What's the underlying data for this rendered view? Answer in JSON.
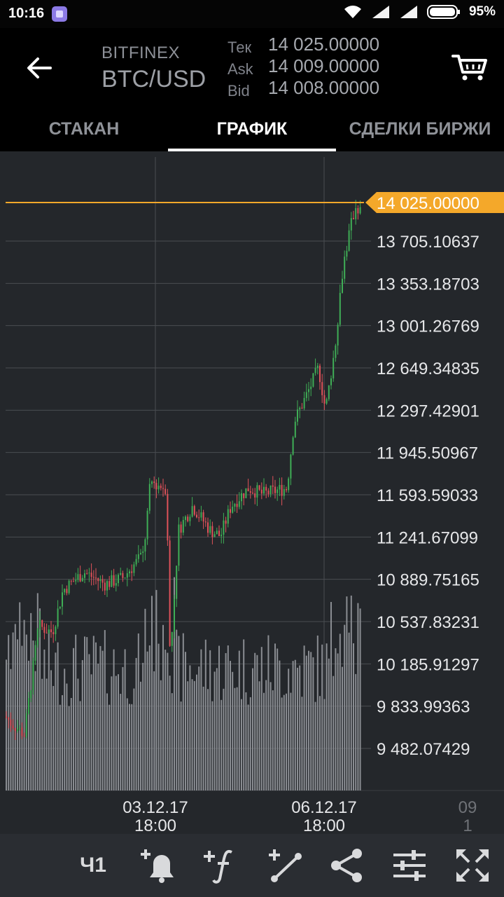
{
  "status_bar": {
    "time": "10:16",
    "battery": "95%"
  },
  "header": {
    "exchange": "BITFINEX",
    "pair": "BTC/USD",
    "quotes": [
      {
        "label": "Тек",
        "value": "14 025.00000"
      },
      {
        "label": "Ask",
        "value": "14 009.00000"
      },
      {
        "label": "Bid",
        "value": "14 008.00000"
      }
    ]
  },
  "tabs": [
    {
      "label": "СТАКАН",
      "active": false
    },
    {
      "label": "ГРАФИК",
      "active": true
    },
    {
      "label": "СДЕЛКИ БИРЖИ",
      "active": false
    }
  ],
  "chart": {
    "current_price_label": "14 025.00000",
    "current_price": 14025.0,
    "price_levels": [
      13705.10637,
      13353.18703,
      13001.26769,
      12649.34835,
      12297.42901,
      11945.50967,
      11593.59033,
      11241.67099,
      10889.75165,
      10537.83231,
      10185.91297,
      9833.99363,
      9482.07429
    ],
    "price_labels": [
      "13 705.10637",
      "13 353.18703",
      "13 001.26769",
      "12 649.34835",
      "12 297.42901",
      "11 945.50967",
      "11 593.59033",
      "11 241.67099",
      "10 889.75165",
      "10 537.83231",
      "10 185.91297",
      "9 833.99363",
      "9 482.07429"
    ],
    "time_labels": [
      {
        "date": "03.12.17",
        "time": "18:00"
      },
      {
        "date": "06.12.17",
        "time": "18:00"
      },
      {
        "date": "09",
        "time": "1"
      }
    ],
    "colors": {
      "background": "#24272b",
      "grid": "#4a4d52",
      "up": "#3fae56",
      "down": "#e0525a",
      "volume": "#8a8d92",
      "price_tag": "#f4a82a"
    }
  },
  "toolbar": {
    "timeframe": "Ч1",
    "icons": [
      "add-alert-icon",
      "add-indicator-icon",
      "add-line-icon",
      "share-icon",
      "settings-sliders-icon",
      "fullscreen-icon"
    ]
  }
}
